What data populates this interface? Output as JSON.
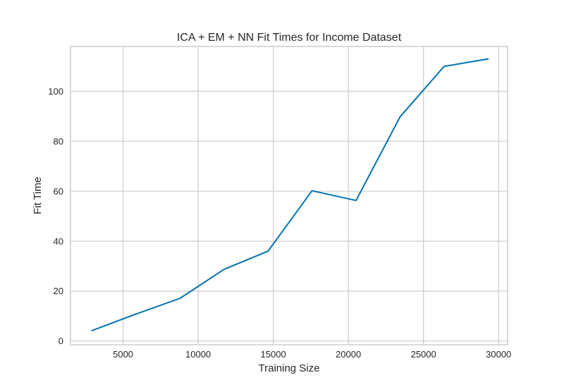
{
  "chart_data": {
    "type": "line",
    "title": "ICA + EM + NN Fit Times for Income Dataset",
    "xlabel": "Training Size",
    "ylabel": "Fit Time",
    "xlim": [
      1500,
      30600
    ],
    "ylim": [
      -1.5,
      118
    ],
    "xticks": [
      5000,
      10000,
      15000,
      20000,
      25000,
      30000
    ],
    "yticks": [
      0,
      20,
      40,
      60,
      80,
      100
    ],
    "grid": true,
    "series": [
      {
        "color": "#0072B2",
        "x": [
          2930,
          5860,
          8790,
          11720,
          14650,
          17580,
          20510,
          23440,
          26370,
          29300
        ],
        "y": [
          4.2,
          10.8,
          17.1,
          28.7,
          36.0,
          60.2,
          56.3,
          89.8,
          110.0,
          113.0
        ]
      }
    ]
  }
}
